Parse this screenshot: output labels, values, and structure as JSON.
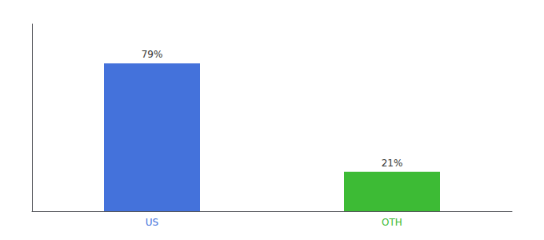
{
  "chart_data": {
    "type": "bar",
    "categories": [
      "US",
      "OTH"
    ],
    "values": [
      79,
      21
    ],
    "value_labels": [
      "79%",
      "21%"
    ],
    "colors": [
      "#4472db",
      "#3dbb35"
    ],
    "ylim": [
      0,
      100
    ],
    "grid": false,
    "data_labels": true,
    "tick_labels": "x"
  }
}
